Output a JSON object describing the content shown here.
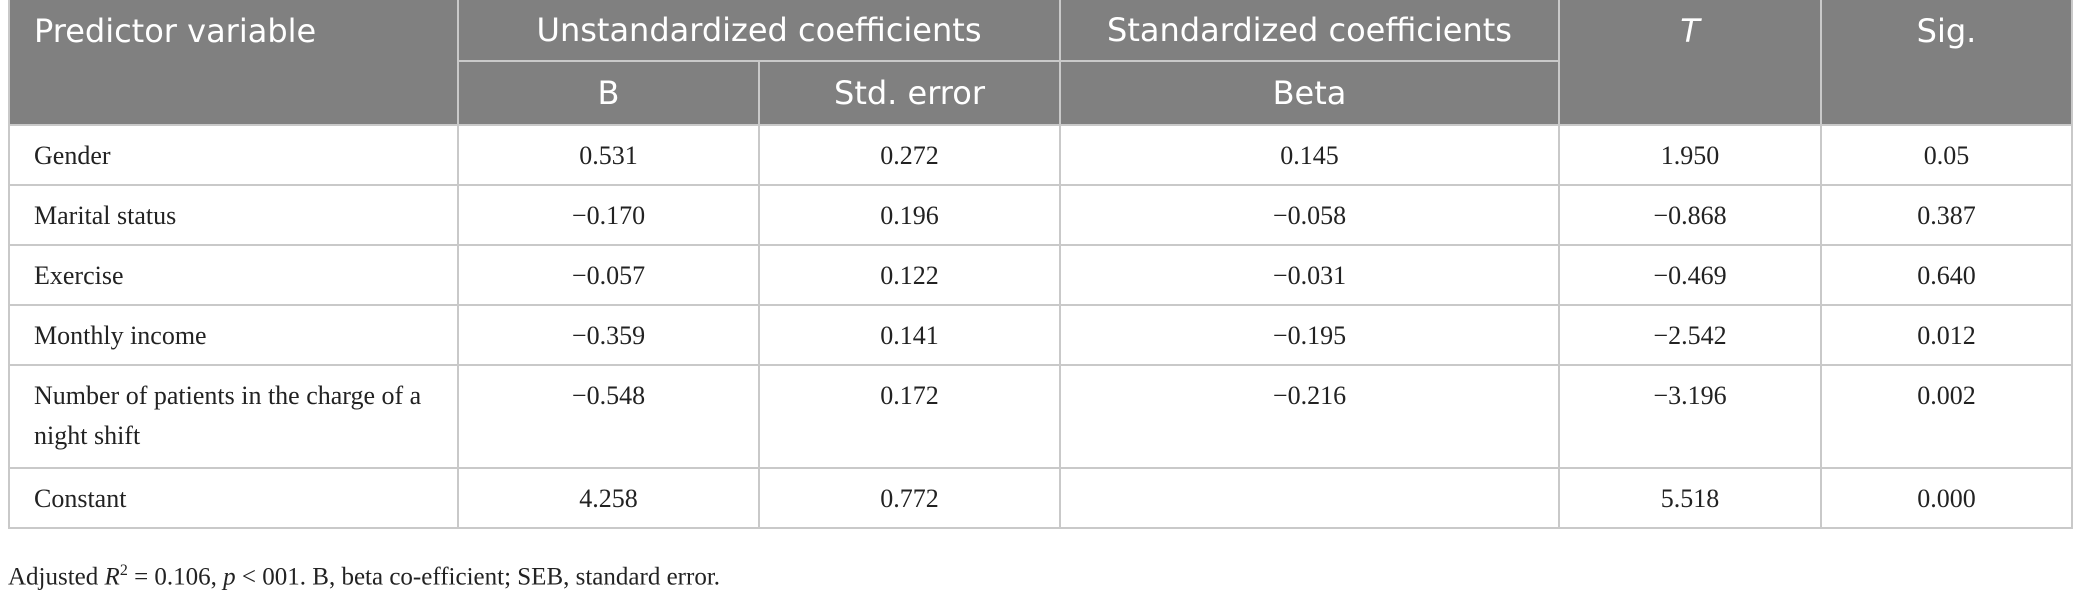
{
  "table": {
    "header": {
      "predictor": "Predictor variable",
      "unstandardized": "Unstandardized coefficients",
      "standardized": "Standardized coefficients",
      "t": "T",
      "sig": "Sig.",
      "b": "B",
      "std_error": "Std. error",
      "beta": "Beta"
    },
    "rows": [
      [
        "Gender",
        "0.531",
        "0.272",
        "0.145",
        "1.950",
        "0.05"
      ],
      [
        "Marital status",
        "−0.170",
        "0.196",
        "−0.058",
        "−0.868",
        "0.387"
      ],
      [
        "Exercise",
        "−0.057",
        "0.122",
        "−0.031",
        "−0.469",
        "0.640"
      ],
      [
        "Monthly income",
        "−0.359",
        "0.141",
        "−0.195",
        "−2.542",
        "0.012"
      ],
      [
        "Number of patients in the charge of a night shift",
        "−0.548",
        "0.172",
        "−0.216",
        "−3.196",
        "0.002"
      ],
      [
        "Constant",
        "4.258",
        "0.772",
        null,
        "5.518",
        "0.000"
      ]
    ]
  },
  "footnote": {
    "part1": "Adjusted ",
    "r": "R",
    "sup": "2",
    "part2": " = 0.106, ",
    "p": "p",
    "part3": " < 001. B, beta co-efficient; SEB, standard error."
  }
}
